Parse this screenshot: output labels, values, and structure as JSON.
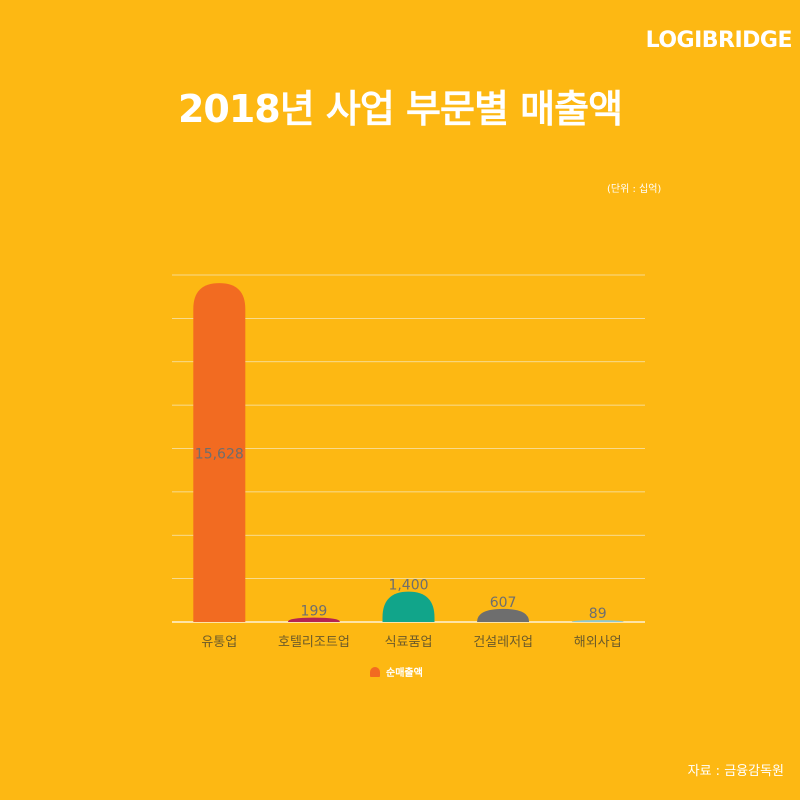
{
  "brand": "LOGIBRIDGE",
  "title": "2018년 사업 부문별 매출액",
  "unit_note": "(단위 : 십억)",
  "source": "자료 : 금융감독원",
  "legend": {
    "label": "순매출액",
    "color": "#F26B21"
  },
  "colors": {
    "background": "#FDB813",
    "gridline": "#F5E6B8",
    "tick_label": "#6B5A2A",
    "value_label": "#6E6E6E"
  },
  "chart_data": {
    "type": "bar",
    "categories": [
      "유통업",
      "호텔리조트업",
      "식료품업",
      "건설레저업",
      "해외사업"
    ],
    "series": [
      {
        "name": "순매출액",
        "values": [
          15628,
          199,
          1400,
          607,
          89
        ]
      }
    ],
    "bar_colors": [
      "#F26B21",
      "#B32353",
      "#11A58A",
      "#6E6E6E",
      "#8CC7D3"
    ],
    "data_labels": [
      "15,628",
      "199",
      "1,400",
      "607",
      "89"
    ],
    "ylim": [
      0,
      16000
    ],
    "grid": true,
    "legend_position": "bottom",
    "title": "2018년 사업 부문별 매출액",
    "xlabel": "",
    "ylabel": ""
  }
}
